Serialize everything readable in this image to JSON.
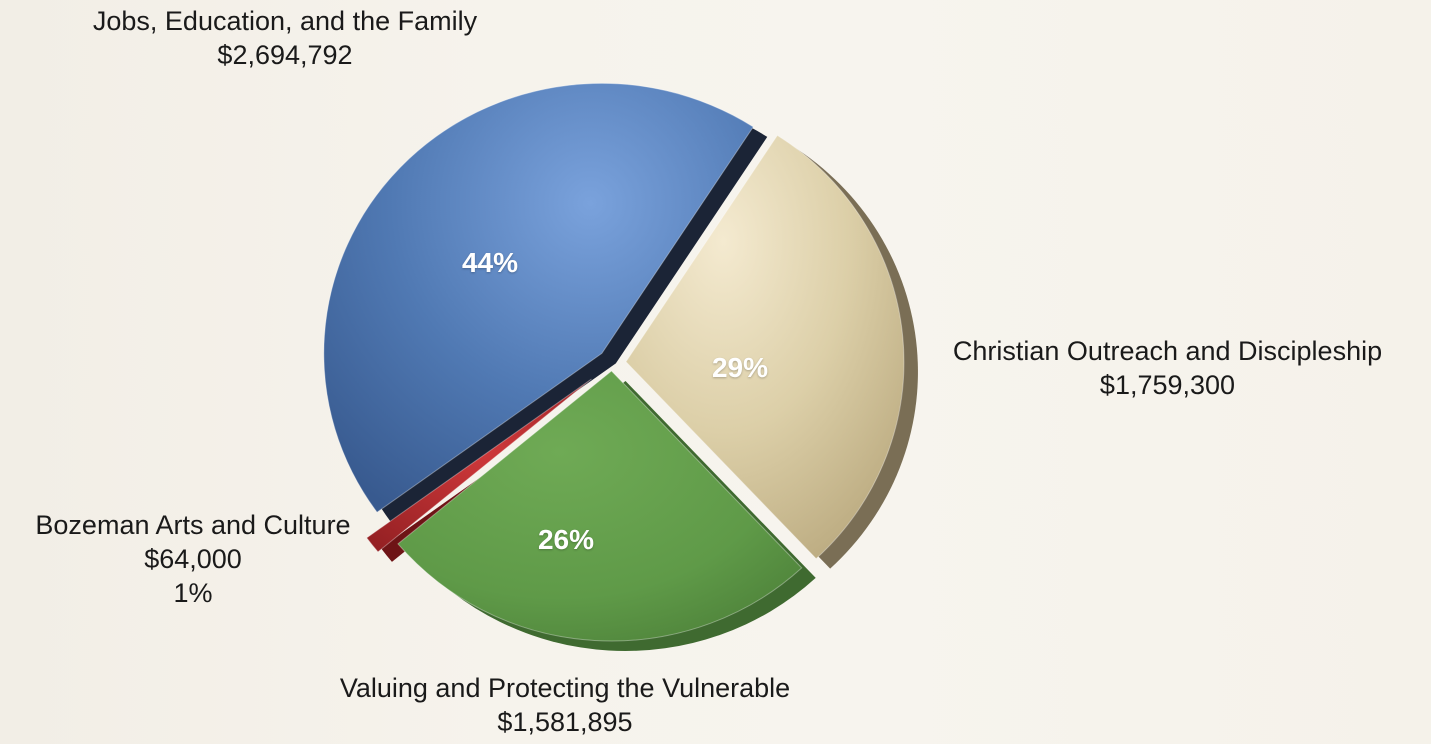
{
  "chart_data": {
    "type": "pie",
    "title": "",
    "categories": [
      "Jobs, Education, and the Family",
      "Christian Outreach and Discipleship",
      "Valuing and Protecting the Vulnerable",
      "Bozeman Arts and Culture"
    ],
    "values": [
      2694792,
      1759300,
      1581895,
      64000
    ],
    "amount_labels": [
      "$2,694,792",
      "$1,759,300",
      "$1,581,895",
      "$64,000"
    ],
    "percent_labels": [
      "44%",
      "29%",
      "26%",
      "1%"
    ],
    "legend": "none",
    "colors": [
      "#5079b3",
      "#d7c9a0",
      "#5f9a48",
      "#b22b2e"
    ]
  }
}
